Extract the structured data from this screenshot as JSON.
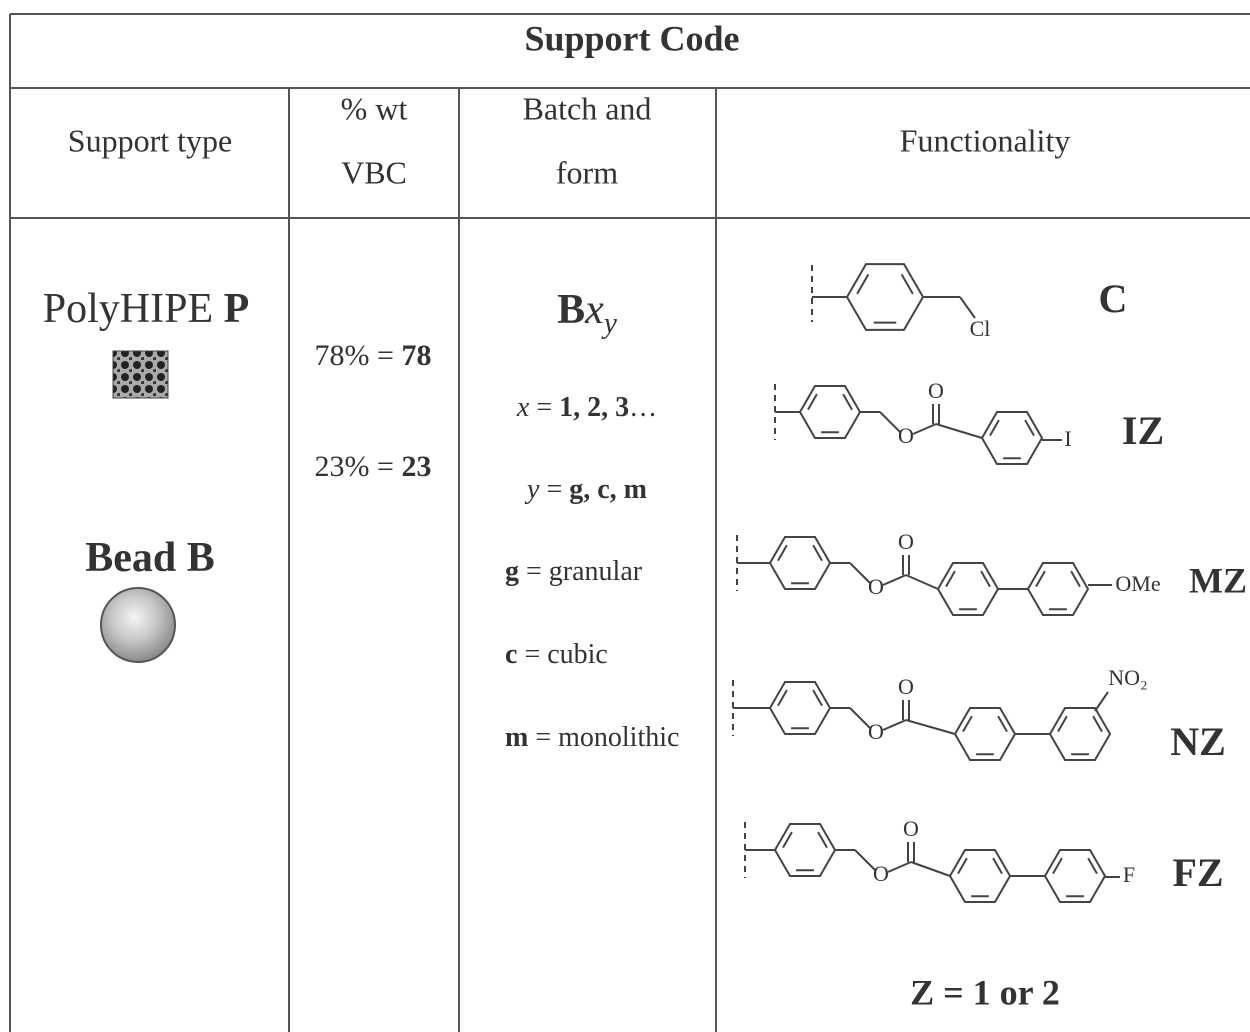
{
  "table": {
    "title": "Support Code",
    "headers": [
      [
        "Support type"
      ],
      [
        "% wt",
        "VBC"
      ],
      [
        "Batch and",
        "form"
      ],
      [
        "Functionality"
      ]
    ],
    "support_types": [
      [
        {
          "text": "PolyHIPE "
        },
        {
          "text": "P",
          "style": "b"
        }
      ],
      [
        {
          "text": "Bead ",
          "style": "b"
        },
        {
          "text": "B",
          "style": "b"
        }
      ]
    ],
    "vbc": [
      [
        {
          "text": "78% = "
        },
        {
          "text": "78",
          "style": "b"
        }
      ],
      [
        {
          "text": "23% = "
        },
        {
          "text": "23",
          "style": "b"
        }
      ]
    ],
    "batch_code": [
      {
        "text": "B",
        "style": "b"
      },
      {
        "text": "x",
        "style": "i"
      },
      {
        "text": "y",
        "style": "sub"
      }
    ],
    "batch_definitions": [
      [
        {
          "text": "x",
          "style": "i"
        },
        {
          "text": " = "
        },
        {
          "text": "1, 2, 3",
          "style": "b"
        },
        {
          "text": "…"
        }
      ],
      [
        {
          "text": "y",
          "style": "i"
        },
        {
          "text": " = "
        },
        {
          "text": "g, c, m",
          "style": "b"
        }
      ],
      [
        {
          "text": "g",
          "style": "b"
        },
        {
          "text": " = granular"
        }
      ],
      [
        {
          "text": "c",
          "style": "b"
        },
        {
          "text": " = cubic"
        }
      ],
      [
        {
          "text": "m",
          "style": "b"
        },
        {
          "text": " = monolithic"
        }
      ]
    ],
    "functionality": [
      {
        "code": "C",
        "atoms": [
          "Cl"
        ]
      },
      {
        "code": "IZ",
        "atoms": [
          "O",
          "O",
          "I"
        ]
      },
      {
        "code": "MZ",
        "atoms": [
          "O",
          "O",
          "OMe"
        ]
      },
      {
        "code": "NZ",
        "atoms": [
          "O",
          "O",
          "NO₂"
        ]
      },
      {
        "code": "FZ",
        "atoms": [
          "O",
          "O",
          "F"
        ]
      }
    ],
    "note": "Z = 1 or 2"
  }
}
